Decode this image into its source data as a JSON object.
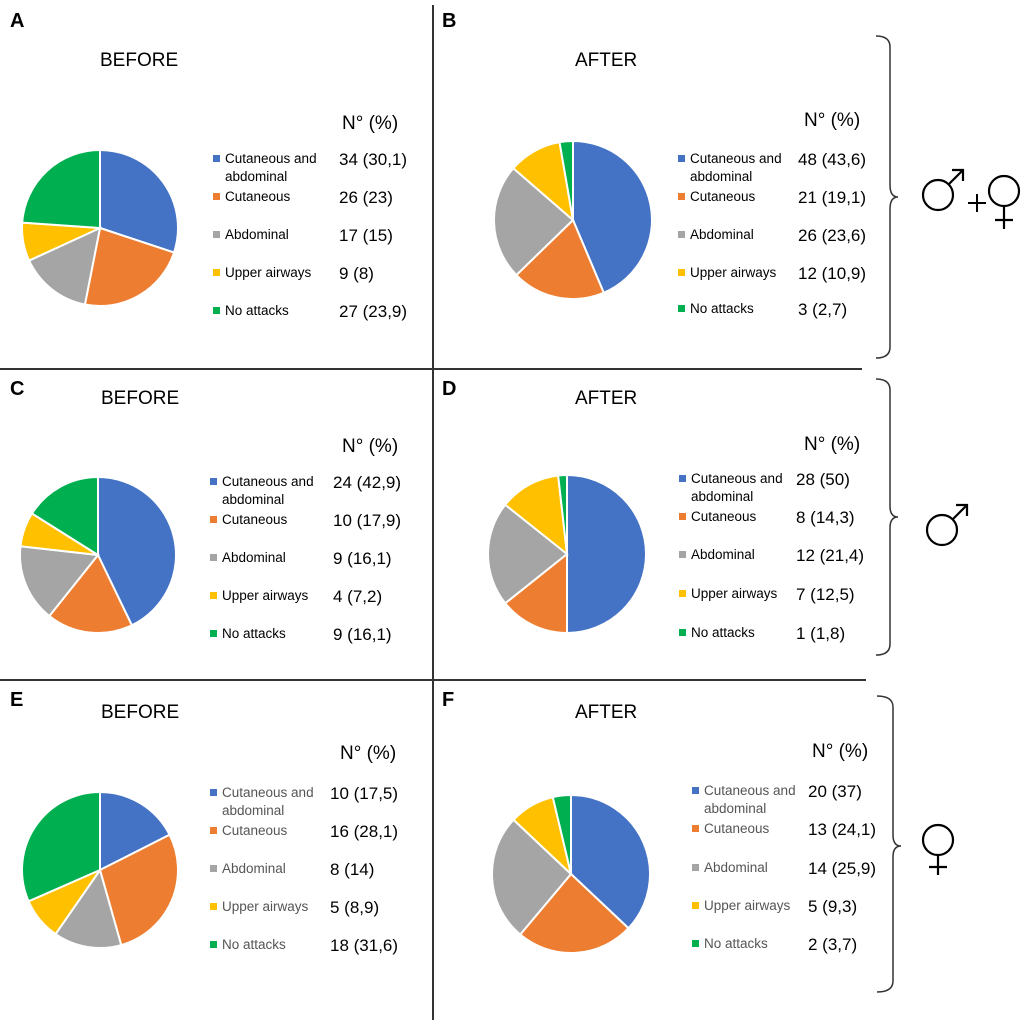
{
  "colors": {
    "cutaneous_abdominal": "#4472C4",
    "cutaneous": "#ED7D31",
    "abdominal": "#A5A5A5",
    "upper_airways": "#FFC000",
    "no_attacks": "#00B050"
  },
  "column_header": "N°  (%)",
  "legend_labels": [
    "Cutaneous and abdominal",
    "Cutaneous",
    "Abdominal",
    "Upper airways",
    "No attacks"
  ],
  "sex_symbols": {
    "row1": "male + female",
    "row2": "male",
    "row3": "female"
  },
  "chart_data": [
    {
      "type": "pie",
      "panel": "A",
      "title": "BEFORE",
      "group": "male + female",
      "categories": [
        "Cutaneous and abdominal",
        "Cutaneous",
        "Abdominal",
        "Upper airways",
        "No attacks"
      ],
      "values": [
        34,
        26,
        17,
        9,
        27
      ],
      "value_labels": [
        "34 (30,1)",
        "26 (23)",
        "17 (15)",
        "9 (8)",
        "27 (23,9)"
      ]
    },
    {
      "type": "pie",
      "panel": "B",
      "title": "AFTER",
      "group": "male + female",
      "categories": [
        "Cutaneous and abdominal",
        "Cutaneous",
        "Abdominal",
        "Upper airways",
        "No attacks"
      ],
      "values": [
        48,
        21,
        26,
        12,
        3
      ],
      "value_labels": [
        "48 (43,6)",
        "21 (19,1)",
        "26 (23,6)",
        "12 (10,9)",
        "3 (2,7)"
      ]
    },
    {
      "type": "pie",
      "panel": "C",
      "title": "BEFORE",
      "group": "male",
      "categories": [
        "Cutaneous and abdominal",
        "Cutaneous",
        "Abdominal",
        "Upper airways",
        "No attacks"
      ],
      "values": [
        24,
        10,
        9,
        4,
        9
      ],
      "value_labels": [
        "24 (42,9)",
        "10 (17,9)",
        "9 (16,1)",
        "4 (7,2)",
        "9 (16,1)"
      ]
    },
    {
      "type": "pie",
      "panel": "D",
      "title": "AFTER",
      "group": "male",
      "categories": [
        "Cutaneous and abdominal",
        "Cutaneous",
        "Abdominal",
        "Upper airways",
        "No attacks"
      ],
      "values": [
        28,
        8,
        12,
        7,
        1
      ],
      "value_labels": [
        "28 (50)",
        "8 (14,3)",
        "12 (21,4)",
        "7 (12,5)",
        "1 (1,8)"
      ]
    },
    {
      "type": "pie",
      "panel": "E",
      "title": "BEFORE",
      "group": "female",
      "categories": [
        "Cutaneous and abdominal",
        "Cutaneous",
        "Abdominal",
        "Upper airways",
        "No attacks"
      ],
      "values": [
        10,
        16,
        8,
        5,
        18
      ],
      "value_labels": [
        "10 (17,5)",
        "16 (28,1)",
        "8 (14)",
        "5 (8,9)",
        "18 (31,6)"
      ]
    },
    {
      "type": "pie",
      "panel": "F",
      "title": "AFTER",
      "group": "female",
      "categories": [
        "Cutaneous and abdominal",
        "Cutaneous",
        "Abdominal",
        "Upper airways",
        "No attacks"
      ],
      "values": [
        20,
        13,
        14,
        5,
        2
      ],
      "value_labels": [
        "20 (37)",
        "13 (24,1)",
        "14 (25,9)",
        "5 (9,3)",
        "2 (3,7)"
      ]
    }
  ]
}
